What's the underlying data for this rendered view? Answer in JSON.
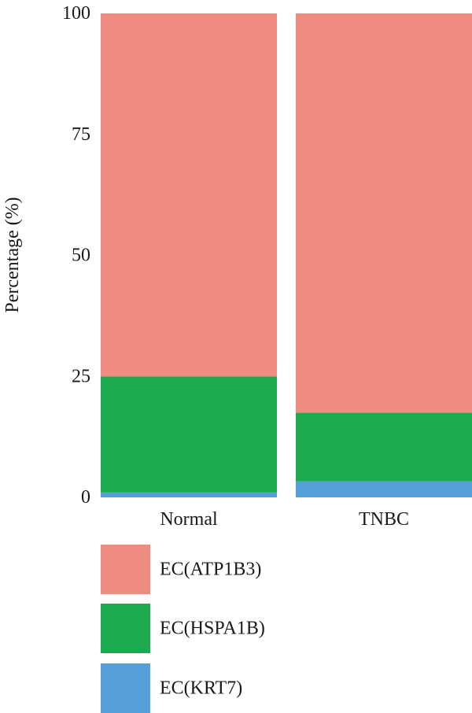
{
  "chart_data": {
    "type": "bar",
    "stacked": true,
    "categories": [
      "Normal",
      "TNBC"
    ],
    "series": [
      {
        "name": "EC(KRT7)",
        "color": "#559fd8",
        "values": [
          1,
          3.3
        ]
      },
      {
        "name": "EC(HSPA1B)",
        "color": "#1daa4f",
        "values": [
          24,
          14.2
        ]
      },
      {
        "name": "EC(ATP1B3)",
        "color": "#ef8c80",
        "values": [
          75,
          82.5
        ]
      }
    ],
    "xlabel": "",
    "ylabel": "Percentage (%)",
    "ylim": [
      0,
      100
    ],
    "yticks": [
      "0",
      "25",
      "50",
      "75",
      "100"
    ],
    "grid": false,
    "legend_position": "bottom"
  }
}
